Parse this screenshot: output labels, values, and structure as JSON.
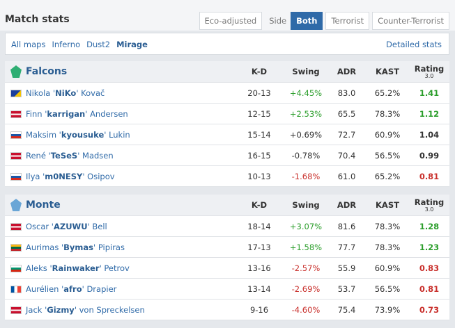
{
  "header": {
    "title": "Match stats",
    "eco": "Eco-adjusted",
    "side_label": "Side",
    "sides": [
      "Both",
      "Terrorist",
      "Counter-Terrorist"
    ],
    "active_side": 0
  },
  "maps": {
    "items": [
      "All maps",
      "Inferno",
      "Dust2",
      "Mirage"
    ],
    "active": 3,
    "detailed": "Detailed stats"
  },
  "columns": {
    "kd": "K-D",
    "swing": "Swing",
    "adr": "ADR",
    "kast": "KAST",
    "rating": "Rating",
    "rating_version": "3.0"
  },
  "teams": [
    {
      "name": "Falcons",
      "logo_color": "#2fae73",
      "players": [
        {
          "flag": "ba",
          "first": "Nikola '",
          "nick": "NiKo",
          "last": "' Kovač",
          "kd": "20-13",
          "swing": "+4.45%",
          "swing_color": "#2a9d2a",
          "adr": "83.0",
          "kast": "65.2%",
          "rating": "1.41",
          "rating_color": "#2a9d2a"
        },
        {
          "flag": "dk",
          "first": "Finn '",
          "nick": "karrigan",
          "last": "' Andersen",
          "kd": "12-15",
          "swing": "+2.53%",
          "swing_color": "#2a9d2a",
          "adr": "65.5",
          "kast": "78.3%",
          "rating": "1.12",
          "rating_color": "#2a9d2a"
        },
        {
          "flag": "ru",
          "first": "Maksim '",
          "nick": "kyousuke",
          "last": "' Lukin",
          "kd": "15-14",
          "swing": "+0.69%",
          "swing_color": "#333333",
          "adr": "72.7",
          "kast": "60.9%",
          "rating": "1.04",
          "rating_color": "#333333"
        },
        {
          "flag": "dk",
          "first": "René '",
          "nick": "TeSeS",
          "last": "' Madsen",
          "kd": "16-15",
          "swing": "-0.78%",
          "swing_color": "#333333",
          "adr": "70.4",
          "kast": "56.5%",
          "rating": "0.99",
          "rating_color": "#333333"
        },
        {
          "flag": "ru",
          "first": "Ilya '",
          "nick": "m0NESY",
          "last": "' Osipov",
          "kd": "10-13",
          "swing": "-1.68%",
          "swing_color": "#c9302c",
          "adr": "61.0",
          "kast": "65.2%",
          "rating": "0.81",
          "rating_color": "#c9302c"
        }
      ]
    },
    {
      "name": "Monte",
      "logo_color": "#6aa6d6",
      "players": [
        {
          "flag": "gb",
          "first": "Oscar '",
          "nick": "AZUWU",
          "last": "' Bell",
          "kd": "18-14",
          "swing": "+3.07%",
          "swing_color": "#2a9d2a",
          "adr": "81.6",
          "kast": "78.3%",
          "rating": "1.28",
          "rating_color": "#2a9d2a"
        },
        {
          "flag": "lt",
          "first": "Aurimas '",
          "nick": "Bymas",
          "last": "' Pipiras",
          "kd": "17-13",
          "swing": "+1.58%",
          "swing_color": "#2a9d2a",
          "adr": "77.7",
          "kast": "78.3%",
          "rating": "1.23",
          "rating_color": "#2a9d2a"
        },
        {
          "flag": "bg",
          "first": "Aleks '",
          "nick": "Rainwaker",
          "last": "' Petrov",
          "kd": "13-16",
          "swing": "-2.57%",
          "swing_color": "#c9302c",
          "adr": "55.9",
          "kast": "60.9%",
          "rating": "0.83",
          "rating_color": "#c9302c"
        },
        {
          "flag": "fr",
          "first": "Aurélien '",
          "nick": "afro",
          "last": "' Drapier",
          "kd": "13-14",
          "swing": "-2.69%",
          "swing_color": "#c9302c",
          "adr": "53.7",
          "kast": "56.5%",
          "rating": "0.81",
          "rating_color": "#c9302c"
        },
        {
          "flag": "gb",
          "first": "Jack '",
          "nick": "Gizmy",
          "last": "' von Spreckelsen",
          "kd": "9-16",
          "swing": "-4.60%",
          "swing_color": "#c9302c",
          "adr": "75.4",
          "kast": "73.9%",
          "rating": "0.73",
          "rating_color": "#c9302c"
        }
      ]
    }
  ]
}
